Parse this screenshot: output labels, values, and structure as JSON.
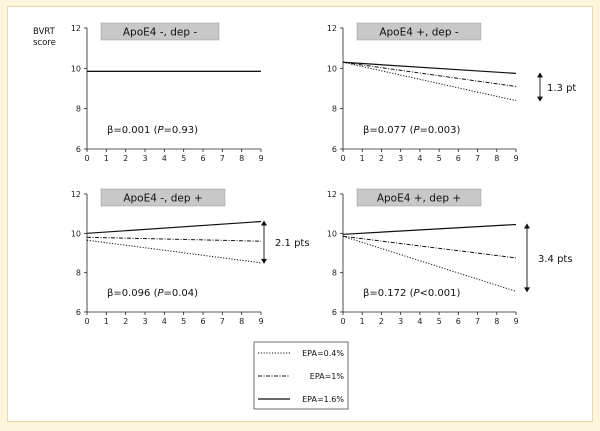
{
  "chart_data": {
    "type": "line",
    "ylabel_line1": "BVRT",
    "ylabel_line2": "score",
    "xlim": [
      0,
      9
    ],
    "ylim": [
      6,
      12
    ],
    "xticks": [
      "0",
      "1",
      "2",
      "3",
      "4",
      "5",
      "6",
      "7",
      "8",
      "9"
    ],
    "yticks": [
      "6",
      "8",
      "10",
      "12"
    ],
    "legend": [
      {
        "name": "EPA=0.4%",
        "style": "dotted"
      },
      {
        "name": "EPA=1%",
        "style": "dashdot"
      },
      {
        "name": "EPA=1.6%",
        "style": "solid"
      }
    ],
    "panels": [
      {
        "title": "ApoE4 -, dep -",
        "beta_prefix": "β=0.001 (",
        "p_label": "P",
        "beta_suffix": "=0.93)",
        "annotation": "",
        "series": [
          {
            "name": "EPA=0.4%",
            "x": [
              0,
              9
            ],
            "y": [
              9.85,
              9.85
            ]
          },
          {
            "name": "EPA=1%",
            "x": [
              0,
              9
            ],
            "y": [
              9.85,
              9.85
            ]
          },
          {
            "name": "EPA=1.6%",
            "x": [
              0,
              9
            ],
            "y": [
              9.85,
              9.85
            ]
          }
        ]
      },
      {
        "title": "ApoE4 +, dep -",
        "beta_prefix": "β=0.077 (",
        "p_label": "P",
        "beta_suffix": "=0.003)",
        "annotation": "1.3 pt",
        "series": [
          {
            "name": "EPA=0.4%",
            "x": [
              0,
              9
            ],
            "y": [
              10.3,
              8.4
            ]
          },
          {
            "name": "EPA=1%",
            "x": [
              0,
              9
            ],
            "y": [
              10.3,
              9.1
            ]
          },
          {
            "name": "EPA=1.6%",
            "x": [
              0,
              9
            ],
            "y": [
              10.3,
              9.75
            ]
          }
        ]
      },
      {
        "title": "ApoE4 -, dep +",
        "beta_prefix": "β=0.096 (",
        "p_label": "P",
        "beta_suffix": "=0.04)",
        "annotation": "2.1 pts",
        "series": [
          {
            "name": "EPA=0.4%",
            "x": [
              0,
              9
            ],
            "y": [
              9.65,
              8.5
            ]
          },
          {
            "name": "EPA=1%",
            "x": [
              0,
              9
            ],
            "y": [
              9.8,
              9.6
            ]
          },
          {
            "name": "EPA=1.6%",
            "x": [
              0,
              9
            ],
            "y": [
              10.0,
              10.6
            ]
          }
        ]
      },
      {
        "title": "ApoE4 +, dep +",
        "beta_prefix": "β=0.172 (",
        "p_label": "P",
        "beta_suffix": "<0.001)",
        "annotation": "3.4 pts",
        "series": [
          {
            "name": "EPA=0.4%",
            "x": [
              0,
              9
            ],
            "y": [
              9.85,
              7.05
            ]
          },
          {
            "name": "EPA=1%",
            "x": [
              0,
              9
            ],
            "y": [
              9.85,
              8.75
            ]
          },
          {
            "name": "EPA=1.6%",
            "x": [
              0,
              9
            ],
            "y": [
              9.95,
              10.45
            ]
          }
        ]
      }
    ]
  }
}
